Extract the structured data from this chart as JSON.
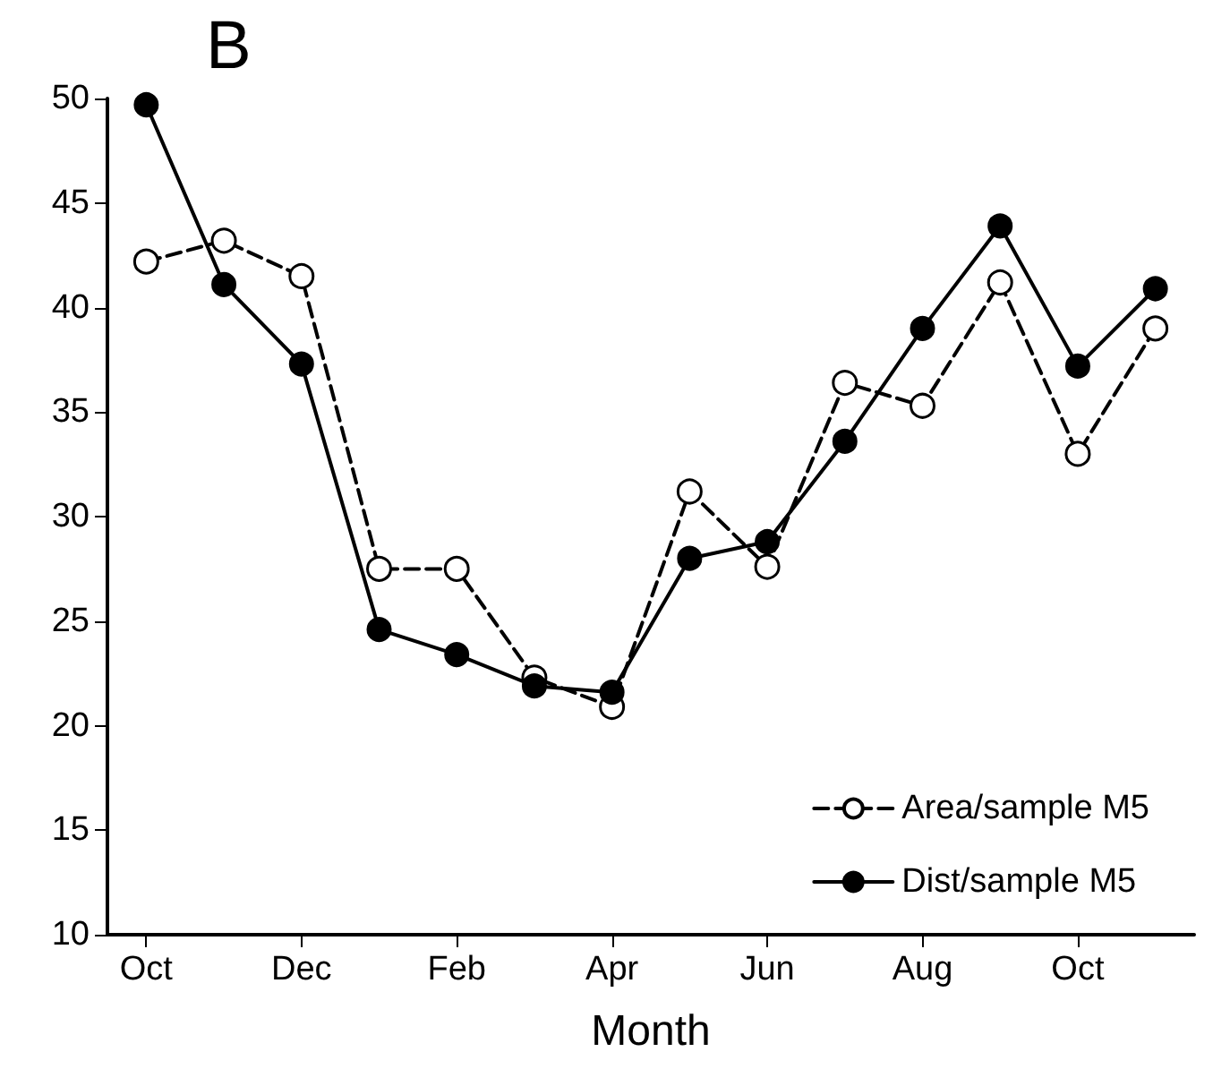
{
  "chart_data": {
    "type": "line",
    "title": "B",
    "xlabel": "Month",
    "categories": [
      "Oct",
      null,
      "Dec",
      null,
      "Feb",
      null,
      "Apr",
      null,
      "Jun",
      null,
      "Aug",
      null,
      "Oct",
      null
    ],
    "series": [
      {
        "name": "Area/sample M5",
        "color": "#000000",
        "line_style": "dashed",
        "marker": "circle",
        "values": [
          42.2,
          43.2,
          41.5,
          27.5,
          27.5,
          22.3,
          20.9,
          31.2,
          27.6,
          36.4,
          35.3,
          41.2,
          33.0,
          39.0
        ]
      },
      {
        "name": "Dist/sample M5",
        "color": "#000000",
        "line_style": "solid",
        "marker": "circle",
        "values": [
          49.7,
          41.1,
          37.3,
          24.6,
          23.4,
          21.9,
          21.6,
          28.0,
          28.8,
          33.6,
          39.0,
          43.9,
          37.2,
          40.9
        ]
      }
    ],
    "ylim": [
      10,
      50
    ],
    "yticks": [
      10,
      15,
      20,
      25,
      30,
      35,
      40,
      45,
      50
    ],
    "grid": false,
    "legend": "bottom right"
  }
}
